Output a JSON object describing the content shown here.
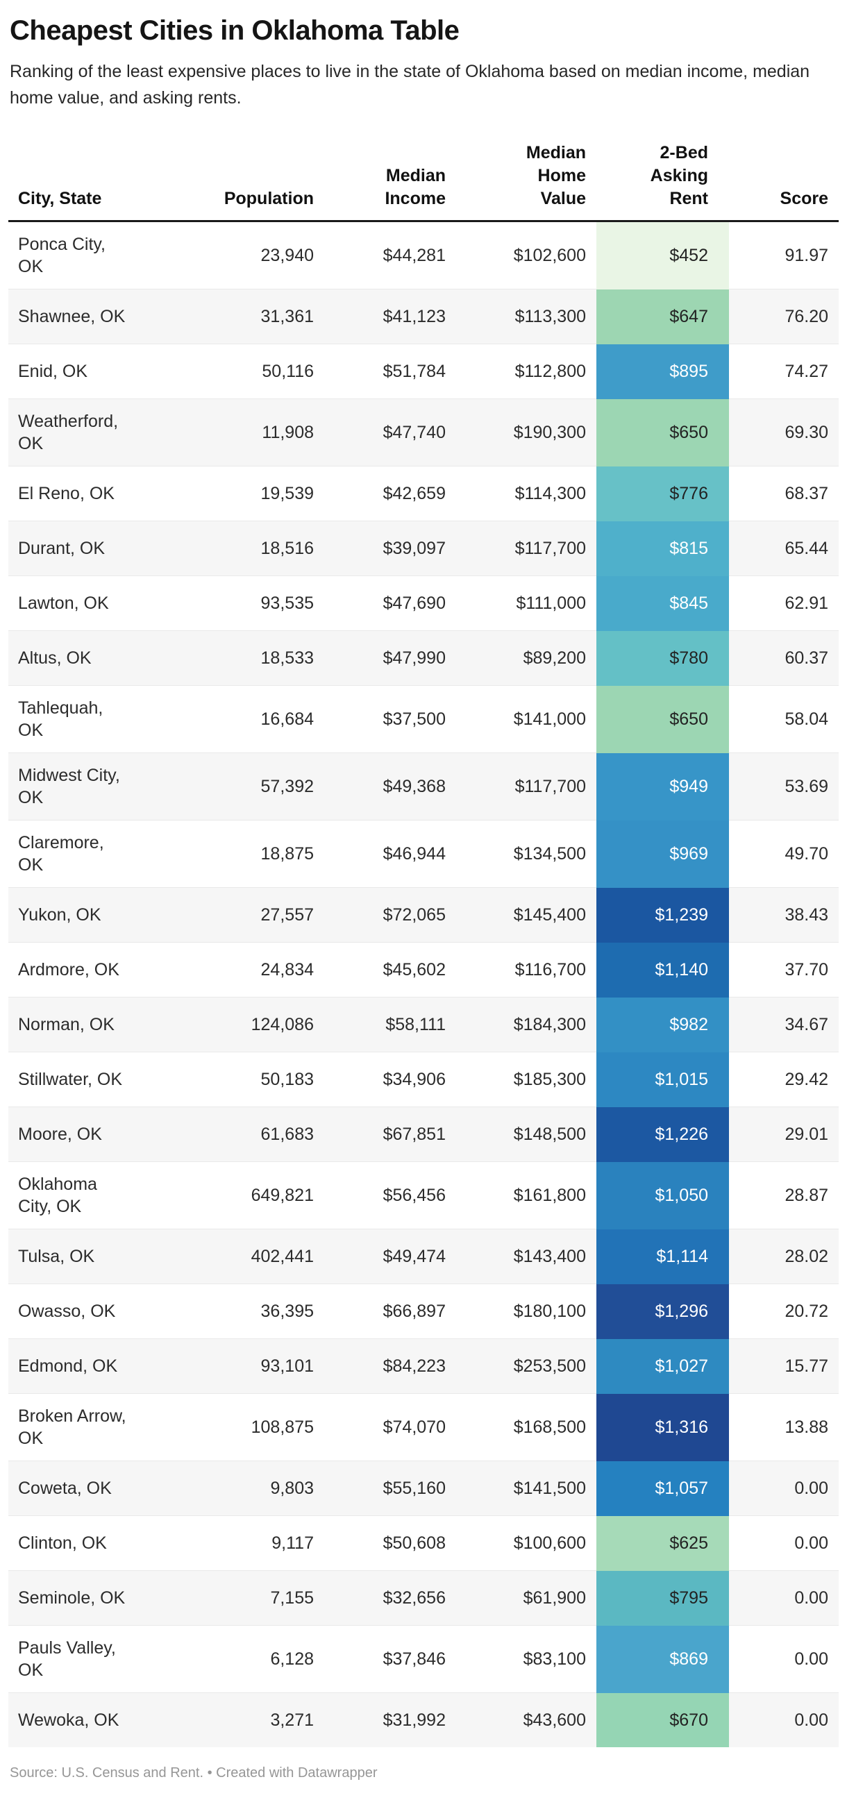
{
  "header": {
    "title": "Cheapest Cities in Oklahoma Table",
    "subtitle": "Ranking of the least expensive places to live in the state of Oklahoma based on median income, median home value, and asking rents."
  },
  "footer": {
    "text": "Source: U.S. Census and Rent. • Created with Datawrapper"
  },
  "colors": {
    "header_border": "#1a1a1a",
    "zebra_row": "#f6f6f6",
    "row_separator": "#e9e9e9",
    "body_text": "#2b2b2b",
    "light_cell_text": "#222222",
    "white_cell_text": "#ffffff",
    "footer_text": "#969696"
  },
  "chart_data": {
    "type": "table",
    "title": "Cheapest Cities in Oklahoma Table",
    "subtitle": "Ranking of the least expensive places to live in the state of Oklahoma based on median income, median home value, and asking rents.",
    "source_note": "Source: U.S. Census and Rent. • Created with Datawrapper",
    "heatmap_column": "2-Bed Asking Rent",
    "columns": [
      {
        "label": "City, State",
        "lines": [
          "City, State"
        ],
        "align": "left"
      },
      {
        "label": "Population",
        "lines": [
          "Population"
        ],
        "align": "right"
      },
      {
        "label": "Median Income",
        "lines": [
          "Median",
          "Income"
        ],
        "align": "right"
      },
      {
        "label": "Median Home Value",
        "lines": [
          "Median",
          "Home",
          "Value"
        ],
        "align": "right"
      },
      {
        "label": "2-Bed Asking Rent",
        "lines": [
          "2-Bed",
          "Asking",
          "Rent"
        ],
        "align": "right"
      },
      {
        "label": "Score",
        "lines": [
          "Score"
        ],
        "align": "right"
      }
    ],
    "rows": [
      {
        "city": "Ponca City, OK",
        "city_lines": [
          "Ponca City,",
          "OK"
        ],
        "population": "23,940",
        "median_income": "$44,281",
        "median_home_value": "$102,600",
        "rent": "$452",
        "score": "91.97",
        "rent_bg": "#e9f5e5",
        "rent_text_light": false
      },
      {
        "city": "Shawnee, OK",
        "city_lines": [
          "Shawnee, OK"
        ],
        "population": "31,361",
        "median_income": "$41,123",
        "median_home_value": "$113,300",
        "rent": "$647",
        "score": "76.20",
        "rent_bg": "#9dd6b2",
        "rent_text_light": false
      },
      {
        "city": "Enid, OK",
        "city_lines": [
          "Enid, OK"
        ],
        "population": "50,116",
        "median_income": "$51,784",
        "median_home_value": "$112,800",
        "rent": "$895",
        "score": "74.27",
        "rent_bg": "#3f9cc9",
        "rent_text_light": true
      },
      {
        "city": "Weatherford, OK",
        "city_lines": [
          "Weatherford,",
          "OK"
        ],
        "population": "11,908",
        "median_income": "$47,740",
        "median_home_value": "$190,300",
        "rent": "$650",
        "score": "69.30",
        "rent_bg": "#9cd6b3",
        "rent_text_light": false
      },
      {
        "city": "El Reno, OK",
        "city_lines": [
          "El Reno, OK"
        ],
        "population": "19,539",
        "median_income": "$42,659",
        "median_home_value": "$114,300",
        "rent": "$776",
        "score": "68.37",
        "rent_bg": "#67c1c7",
        "rent_text_light": false
      },
      {
        "city": "Durant, OK",
        "city_lines": [
          "Durant, OK"
        ],
        "population": "18,516",
        "median_income": "$39,097",
        "median_home_value": "$117,700",
        "rent": "$815",
        "score": "65.44",
        "rent_bg": "#4fb0cb",
        "rent_text_light": true
      },
      {
        "city": "Lawton, OK",
        "city_lines": [
          "Lawton, OK"
        ],
        "population": "93,535",
        "median_income": "$47,690",
        "median_home_value": "$111,000",
        "rent": "$845",
        "score": "62.91",
        "rent_bg": "#49aacb",
        "rent_text_light": true
      },
      {
        "city": "Altus, OK",
        "city_lines": [
          "Altus, OK"
        ],
        "population": "18,533",
        "median_income": "$47,990",
        "median_home_value": "$89,200",
        "rent": "$780",
        "score": "60.37",
        "rent_bg": "#64c0c6",
        "rent_text_light": false
      },
      {
        "city": "Tahlequah, OK",
        "city_lines": [
          "Tahlequah,",
          "OK"
        ],
        "population": "16,684",
        "median_income": "$37,500",
        "median_home_value": "$141,000",
        "rent": "$650",
        "score": "58.04",
        "rent_bg": "#9cd6b3",
        "rent_text_light": false
      },
      {
        "city": "Midwest City, OK",
        "city_lines": [
          "Midwest City,",
          "OK"
        ],
        "population": "57,392",
        "median_income": "$49,368",
        "median_home_value": "$117,700",
        "rent": "$949",
        "score": "53.69",
        "rent_bg": "#3795c8",
        "rent_text_light": true
      },
      {
        "city": "Claremore, OK",
        "city_lines": [
          "Claremore,",
          "OK"
        ],
        "population": "18,875",
        "median_income": "$46,944",
        "median_home_value": "$134,500",
        "rent": "$969",
        "score": "49.70",
        "rent_bg": "#3591c6",
        "rent_text_light": true
      },
      {
        "city": "Yukon, OK",
        "city_lines": [
          "Yukon, OK"
        ],
        "population": "27,557",
        "median_income": "$72,065",
        "median_home_value": "$145,400",
        "rent": "$1,239",
        "score": "38.43",
        "rent_bg": "#1b57a1",
        "rent_text_light": true
      },
      {
        "city": "Ardmore, OK",
        "city_lines": [
          "Ardmore, OK"
        ],
        "population": "24,834",
        "median_income": "$45,602",
        "median_home_value": "$116,700",
        "rent": "$1,140",
        "score": "37.70",
        "rent_bg": "#1e6cb0",
        "rent_text_light": true
      },
      {
        "city": "Norman, OK",
        "city_lines": [
          "Norman, OK"
        ],
        "population": "124,086",
        "median_income": "$58,111",
        "median_home_value": "$184,300",
        "rent": "$982",
        "score": "34.67",
        "rent_bg": "#3390c5",
        "rent_text_light": true
      },
      {
        "city": "Stillwater, OK",
        "city_lines": [
          "Stillwater, OK"
        ],
        "population": "50,183",
        "median_income": "$34,906",
        "median_home_value": "$185,300",
        "rent": "$1,015",
        "score": "29.42",
        "rent_bg": "#2d88c2",
        "rent_text_light": true
      },
      {
        "city": "Moore, OK",
        "city_lines": [
          "Moore, OK"
        ],
        "population": "61,683",
        "median_income": "$67,851",
        "median_home_value": "$148,500",
        "rent": "$1,226",
        "score": "29.01",
        "rent_bg": "#1c58a2",
        "rent_text_light": true
      },
      {
        "city": "Oklahoma City, OK",
        "city_lines": [
          "Oklahoma",
          "City, OK"
        ],
        "population": "649,821",
        "median_income": "$56,456",
        "median_home_value": "$161,800",
        "rent": "$1,050",
        "score": "28.87",
        "rent_bg": "#2a82be",
        "rent_text_light": true
      },
      {
        "city": "Tulsa, OK",
        "city_lines": [
          "Tulsa, OK"
        ],
        "population": "402,441",
        "median_income": "$49,474",
        "median_home_value": "$143,400",
        "rent": "$1,114",
        "score": "28.02",
        "rent_bg": "#2273b7",
        "rent_text_light": true
      },
      {
        "city": "Owasso, OK",
        "city_lines": [
          "Owasso, OK"
        ],
        "population": "36,395",
        "median_income": "$66,897",
        "median_home_value": "$180,100",
        "rent": "$1,296",
        "score": "20.72",
        "rent_bg": "#214e97",
        "rent_text_light": true
      },
      {
        "city": "Edmond, OK",
        "city_lines": [
          "Edmond, OK"
        ],
        "population": "93,101",
        "median_income": "$84,223",
        "median_home_value": "$253,500",
        "rent": "$1,027",
        "score": "15.77",
        "rent_bg": "#2e8ac1",
        "rent_text_light": true
      },
      {
        "city": "Broken Arrow, OK",
        "city_lines": [
          "Broken Arrow,",
          "OK"
        ],
        "population": "108,875",
        "median_income": "$74,070",
        "median_home_value": "$168,500",
        "rent": "$1,316",
        "score": "13.88",
        "rent_bg": "#1f4892",
        "rent_text_light": true
      },
      {
        "city": "Coweta, OK",
        "city_lines": [
          "Coweta, OK"
        ],
        "population": "9,803",
        "median_income": "$55,160",
        "median_home_value": "$141,500",
        "rent": "$1,057",
        "score": "0.00",
        "rent_bg": "#2581c0",
        "rent_text_light": true
      },
      {
        "city": "Clinton, OK",
        "city_lines": [
          "Clinton, OK"
        ],
        "population": "9,117",
        "median_income": "$50,608",
        "median_home_value": "$100,600",
        "rent": "$625",
        "score": "0.00",
        "rent_bg": "#a6dab8",
        "rent_text_light": false
      },
      {
        "city": "Seminole, OK",
        "city_lines": [
          "Seminole, OK"
        ],
        "population": "7,155",
        "median_income": "$32,656",
        "median_home_value": "$61,900",
        "rent": "$795",
        "score": "0.00",
        "rent_bg": "#5bb8c2",
        "rent_text_light": false
      },
      {
        "city": "Pauls Valley, OK",
        "city_lines": [
          "Pauls Valley,",
          "OK"
        ],
        "population": "6,128",
        "median_income": "$37,846",
        "median_home_value": "$83,100",
        "rent": "$869",
        "score": "0.00",
        "rent_bg": "#4aa5cc",
        "rent_text_light": true
      },
      {
        "city": "Wewoka, OK",
        "city_lines": [
          "Wewoka, OK"
        ],
        "population": "3,271",
        "median_income": "$31,992",
        "median_home_value": "$43,600",
        "rent": "$670",
        "score": "0.00",
        "rent_bg": "#95d5b4",
        "rent_text_light": false
      }
    ]
  }
}
